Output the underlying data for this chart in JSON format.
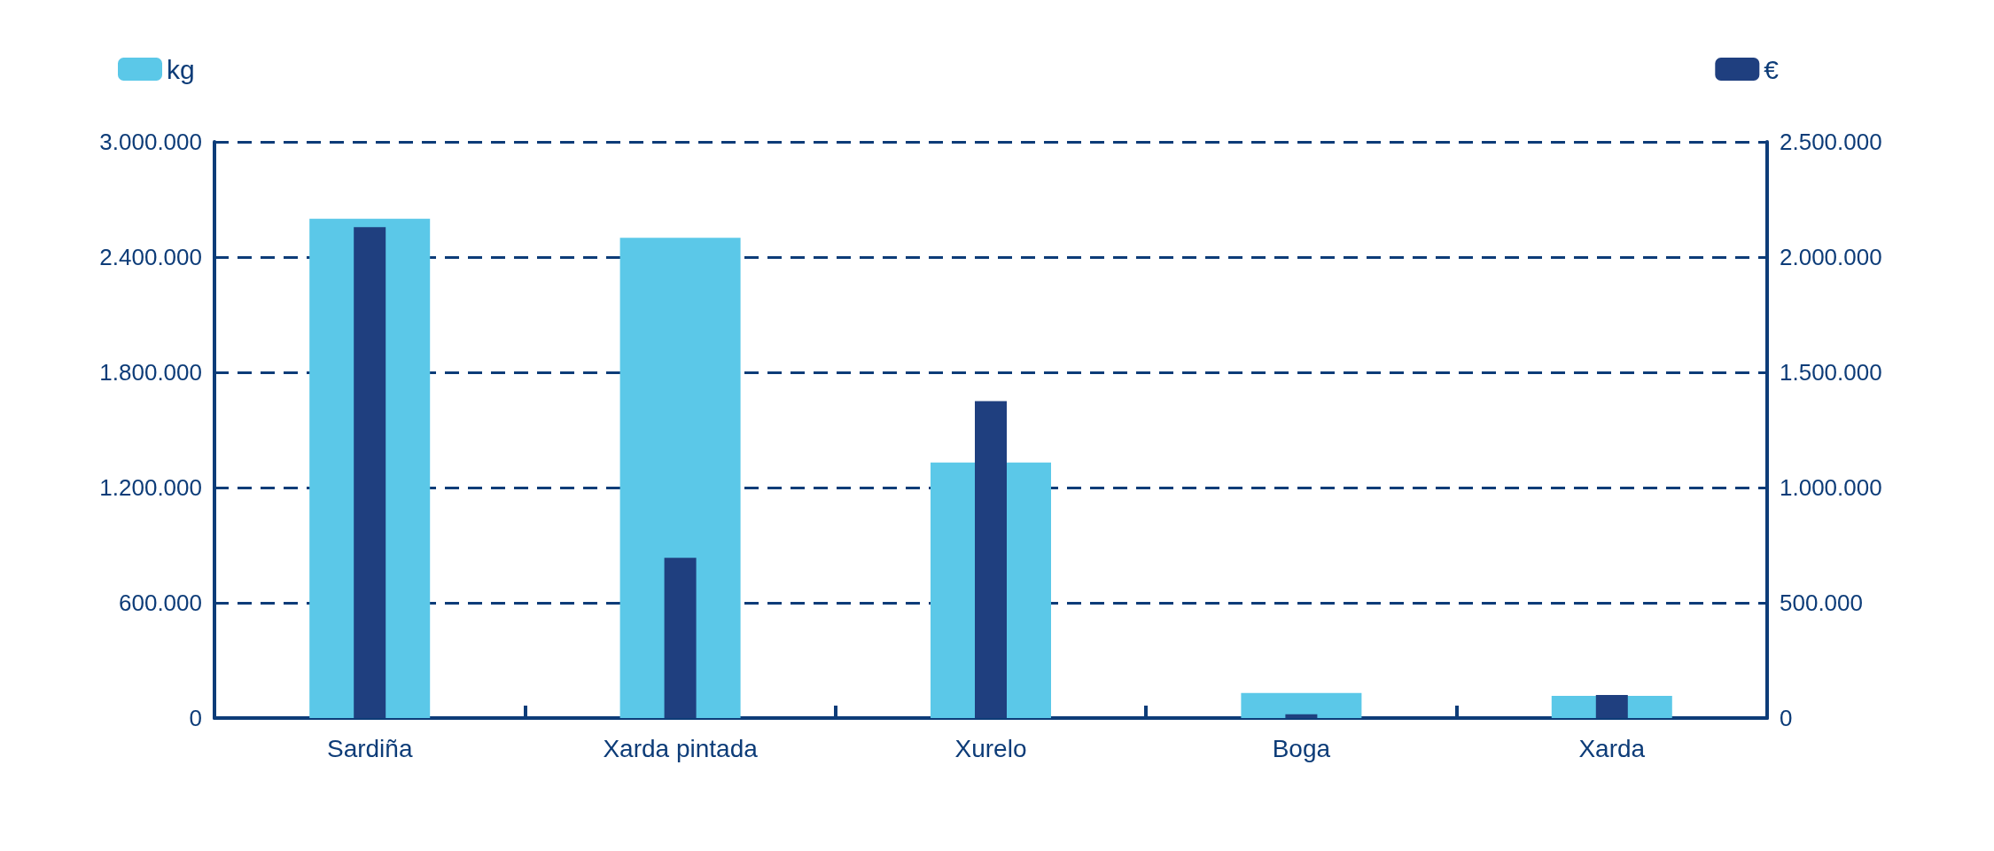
{
  "chart_data": {
    "type": "bar",
    "categories": [
      "Sardiña",
      "Xarda pintada",
      "Xurelo",
      "Boga",
      "Xarda"
    ],
    "series": [
      {
        "name": "kg",
        "color": "#5bc8e8",
        "values": [
          2600000,
          2500000,
          1330000,
          130000,
          115000
        ]
      },
      {
        "name": "€",
        "color": "#1f3f7f",
        "axis": "y2",
        "values": [
          2130000,
          695000,
          1375000,
          16000,
          100000
        ]
      }
    ],
    "ylim": [
      0,
      3000000
    ],
    "yticks": [
      0,
      {
        "value": 600000,
        "label": "600.000"
      },
      {
        "value": 1200000,
        "label": "1.200.000"
      },
      {
        "value": 1800000,
        "label": "1.800.000"
      },
      {
        "value": 2400000,
        "label": "2.400.000"
      },
      {
        "value": 3000000,
        "label": "3.000.000"
      }
    ],
    "y2lim": [
      0,
      2500000
    ],
    "y2ticks": [
      0,
      {
        "value": 500000,
        "label": "500.000"
      },
      {
        "value": 1000000,
        "label": "1.000.000"
      },
      {
        "value": 1500000,
        "label": "1.500.000"
      },
      {
        "value": 2000000,
        "label": "2.000.000"
      },
      {
        "value": 2500000,
        "label": "2.500.000"
      }
    ],
    "grid": "y",
    "legend": "top"
  }
}
